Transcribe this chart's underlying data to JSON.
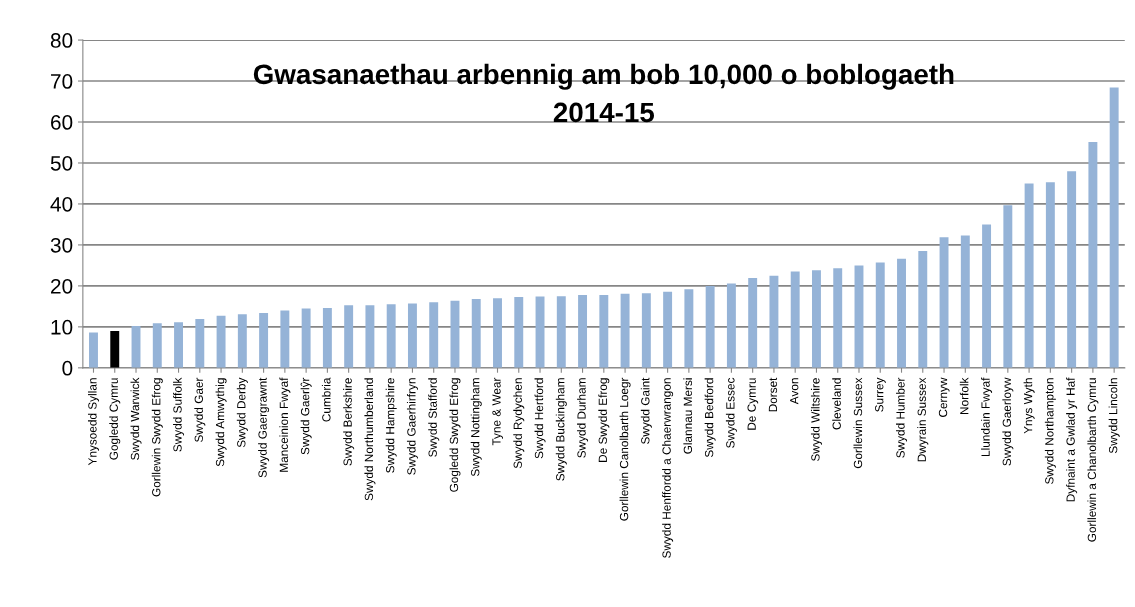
{
  "chart_data": {
    "type": "bar",
    "title": "Gwasanaethau arbennig am bob 10,000 o boblogaeth\n2014-15",
    "categories": [
      "Ynysoedd Syllan",
      "Gogledd Cymru",
      "Swydd Warwick",
      "Gorllewin Swydd Efrog",
      "Swydd Suffolk",
      "Swydd Gaer",
      "Swydd Amwythig",
      "Swydd Derby",
      "Swydd Gaergrawnt",
      "Manceinion Fwyaf",
      "Swydd Gaerlŷr",
      "Cumbria",
      "Swydd Berkshire",
      "Swydd Northumberland",
      "Swydd Hampshire",
      "Swydd Gaerhirfryn",
      "Swydd Stafford",
      "Gogledd Swydd Efrog",
      "Swydd Nottingham",
      "Tyne & Wear",
      "Swydd Rydychen",
      "Swydd Hertford",
      "Swydd Buckingham",
      "Swydd Durham",
      "De Swydd Efrog",
      "Gorllewin Canolbarth Loegr",
      "Swydd Gaint",
      "Swydd Henffordd a Chaerwrangon",
      "Glannau Mersi",
      "Swydd Bedford",
      "Swydd Essec",
      "De Cymru",
      "Dorset",
      "Avon",
      "Swydd Wiltshire",
      "Cleveland",
      "Gorllewin Sussex",
      "Surrey",
      "Swydd Humber",
      "Dwyrain Sussex",
      "Cernyw",
      "Norfolk",
      "Llundain Fwyaf",
      "Swydd Gaerloyw",
      "Ynys Wyth",
      "Swydd Northampton",
      "Dyfnaint a Gwlad yr Haf",
      "Gorllewin a Chanolbarth Cymru",
      "Swydd Lincoln"
    ],
    "values": [
      8.6,
      9.0,
      10.2,
      10.9,
      11.1,
      11.9,
      12.7,
      13.1,
      13.4,
      14.0,
      14.5,
      14.6,
      15.3,
      15.3,
      15.5,
      15.7,
      16.0,
      16.4,
      16.8,
      17.0,
      17.3,
      17.4,
      17.5,
      17.8,
      17.8,
      18.1,
      18.2,
      18.6,
      19.2,
      20.0,
      20.6,
      21.9,
      22.5,
      23.5,
      23.8,
      24.3,
      25.0,
      25.7,
      26.6,
      28.5,
      31.9,
      32.3,
      35.0,
      39.7,
      45.0,
      45.3,
      48.0,
      55.1,
      68.4
    ],
    "colors": [
      "#95b3d7",
      "#000000",
      "#95b3d7",
      "#95b3d7",
      "#95b3d7",
      "#95b3d7",
      "#95b3d7",
      "#95b3d7",
      "#95b3d7",
      "#95b3d7",
      "#95b3d7",
      "#95b3d7",
      "#95b3d7",
      "#95b3d7",
      "#95b3d7",
      "#95b3d7",
      "#95b3d7",
      "#95b3d7",
      "#95b3d7",
      "#95b3d7",
      "#95b3d7",
      "#95b3d7",
      "#95b3d7",
      "#95b3d7",
      "#95b3d7",
      "#95b3d7",
      "#95b3d7",
      "#95b3d7",
      "#95b3d7",
      "#95b3d7",
      "#95b3d7",
      "#95b3d7",
      "#95b3d7",
      "#95b3d7",
      "#95b3d7",
      "#95b3d7",
      "#95b3d7",
      "#95b3d7",
      "#95b3d7",
      "#95b3d7",
      "#95b3d7",
      "#95b3d7",
      "#95b3d7",
      "#95b3d7",
      "#95b3d7",
      "#95b3d7",
      "#95b3d7",
      "#95b3d7",
      "#95b3d7"
    ],
    "ylim": [
      0,
      80
    ],
    "yticks": [
      0,
      10,
      20,
      30,
      40,
      50,
      60,
      70,
      80
    ],
    "grid": "y"
  }
}
